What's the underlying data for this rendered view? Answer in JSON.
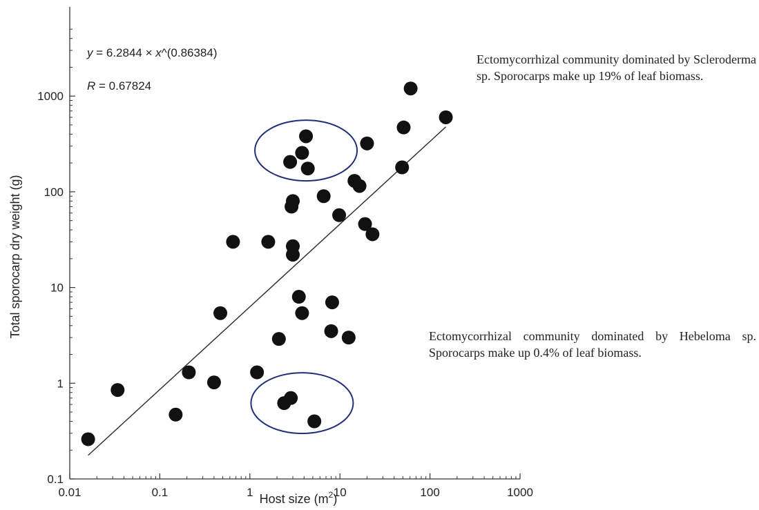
{
  "chart_data": {
    "type": "scatter",
    "x_scale": "log",
    "y_scale": "log",
    "xlim": [
      0.01,
      1000
    ],
    "ylim": [
      0.1,
      5000
    ],
    "xlabel": "Host size (m",
    "xlabel_sup": "2",
    "xlabel_end": ")",
    "ylabel": "Total sporocarp dry weight (g)",
    "x_ticks": [
      {
        "value": 0.01,
        "label": "0.01"
      },
      {
        "value": 0.1,
        "label": "0.1"
      },
      {
        "value": 1,
        "label": "1"
      },
      {
        "value": 10,
        "label": "10"
      },
      {
        "value": 100,
        "label": "100"
      },
      {
        "value": 1000,
        "label": "1000"
      }
    ],
    "y_ticks": [
      {
        "value": 0.1,
        "label": "0.1"
      },
      {
        "value": 1,
        "label": "1"
      },
      {
        "value": 10,
        "label": "10"
      },
      {
        "value": 100,
        "label": "100"
      },
      {
        "value": 1000,
        "label": "1000"
      }
    ],
    "equation": {
      "y_var": "y",
      "body": " = 6.2844 × ",
      "x_var": "x",
      "tail": "^(0.86384)",
      "r_var": "R",
      "r_text": " = 0.67824"
    },
    "fit": {
      "a": 6.2844,
      "b": 0.86384,
      "x_from": 0.016,
      "x_to": 150
    },
    "points": [
      {
        "x": 0.016,
        "y": 0.26
      },
      {
        "x": 0.034,
        "y": 0.85
      },
      {
        "x": 0.15,
        "y": 0.47
      },
      {
        "x": 0.21,
        "y": 1.3
      },
      {
        "x": 0.4,
        "y": 1.02
      },
      {
        "x": 0.47,
        "y": 5.4
      },
      {
        "x": 0.65,
        "y": 30
      },
      {
        "x": 1.2,
        "y": 1.3
      },
      {
        "x": 1.6,
        "y": 30
      },
      {
        "x": 2.1,
        "y": 2.9
      },
      {
        "x": 2.4,
        "y": 0.62
      },
      {
        "x": 2.8,
        "y": 205
      },
      {
        "x": 2.85,
        "y": 0.7
      },
      {
        "x": 2.9,
        "y": 70
      },
      {
        "x": 3.0,
        "y": 80
      },
      {
        "x": 3.0,
        "y": 27
      },
      {
        "x": 3.0,
        "y": 22
      },
      {
        "x": 3.5,
        "y": 8.0
      },
      {
        "x": 3.8,
        "y": 255
      },
      {
        "x": 3.8,
        "y": 5.4
      },
      {
        "x": 4.2,
        "y": 380
      },
      {
        "x": 4.4,
        "y": 175
      },
      {
        "x": 5.2,
        "y": 0.4
      },
      {
        "x": 6.6,
        "y": 90
      },
      {
        "x": 8.0,
        "y": 3.5
      },
      {
        "x": 8.2,
        "y": 7.0
      },
      {
        "x": 9.8,
        "y": 57
      },
      {
        "x": 12.5,
        "y": 3.0
      },
      {
        "x": 14.5,
        "y": 130
      },
      {
        "x": 16.5,
        "y": 115
      },
      {
        "x": 19,
        "y": 46
      },
      {
        "x": 20,
        "y": 320
      },
      {
        "x": 23,
        "y": 36
      },
      {
        "x": 49,
        "y": 180
      },
      {
        "x": 51,
        "y": 470
      },
      {
        "x": 61,
        "y": 1200
      },
      {
        "x": 150,
        "y": 600
      }
    ],
    "highlight_ellipses": [
      {
        "center": {
          "x": 4.2,
          "y": 270
        },
        "color": "#1f2f7a"
      },
      {
        "center": {
          "x": 3.8,
          "y": 0.62
        },
        "color": "#1f2f7a"
      }
    ]
  },
  "annotations": {
    "top": "Ectomycorrhizal community dominated by Scleroderma sp. Sporocarps make up 19% of leaf biomass.",
    "bottom": "Ectomycorrhizal community dominated by Hebe­loma sp. Sporocarps make up 0.4% of leaf bio­mass."
  }
}
